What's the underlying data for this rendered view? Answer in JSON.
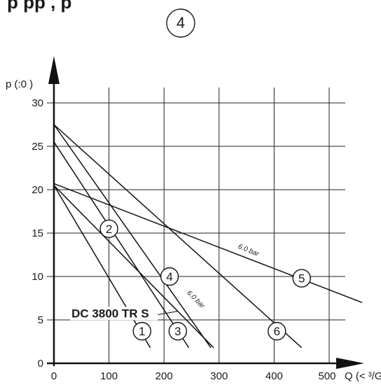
{
  "header": {
    "partial_text": "p      pp            ,     p",
    "badge": "4"
  },
  "chart_data": {
    "type": "line",
    "title": "",
    "xlabel": "Q (< ³/G)",
    "ylabel": "p (:0    )",
    "xlim": [
      0,
      500
    ],
    "ylim": [
      0,
      30
    ],
    "x_ticks": [
      0,
      100,
      200,
      300,
      400,
      500
    ],
    "y_ticks": [
      0,
      5,
      10,
      15,
      20,
      25,
      30
    ],
    "x_tick_labels": [
      "0",
      "100",
      "200",
      "300",
      "400",
      "500"
    ],
    "y_tick_labels": [
      "0",
      "5",
      "10",
      "15",
      "20",
      "25",
      "30"
    ],
    "grid": true,
    "series": [
      {
        "name": "1",
        "x": [
          0,
          175
        ],
        "y": [
          20.5,
          1.8
        ]
      },
      {
        "name": "2",
        "x": [
          0,
          290
        ],
        "y": [
          20.5,
          1.8
        ]
      },
      {
        "name": "3",
        "x": [
          0,
          245
        ],
        "y": [
          25.5,
          1.8
        ]
      },
      {
        "name": "4",
        "x": [
          0,
          285
        ],
        "y": [
          27.5,
          1.8
        ]
      },
      {
        "name": "5",
        "x": [
          0,
          560
        ],
        "y": [
          20.7,
          7.0
        ]
      },
      {
        "name": "6",
        "x": [
          0,
          450
        ],
        "y": [
          27.5,
          1.8
        ]
      }
    ],
    "circle_labels": [
      {
        "text": "1",
        "x": 160,
        "y": 3.7
      },
      {
        "text": "2",
        "x": 100,
        "y": 15.5
      },
      {
        "text": "3",
        "x": 225,
        "y": 3.7
      },
      {
        "text": "4",
        "x": 210,
        "y": 10
      },
      {
        "text": "5",
        "x": 450,
        "y": 9.8
      },
      {
        "text": "6",
        "x": 405,
        "y": 3.7
      }
    ],
    "annotations": [
      {
        "text": "6.0 bar",
        "x": 352,
        "y": 12.8,
        "rotate": 22
      },
      {
        "text": "6.0 bar",
        "x": 255,
        "y": 7.2,
        "rotate": 45
      }
    ],
    "product_label": {
      "text": "DC 3800 TR S",
      "x": 32,
      "y": 5.3,
      "leader_points": [
        {
          "x": 180,
          "y": 5.5
        },
        {
          "x": 225,
          "y": 6.0
        }
      ]
    }
  }
}
